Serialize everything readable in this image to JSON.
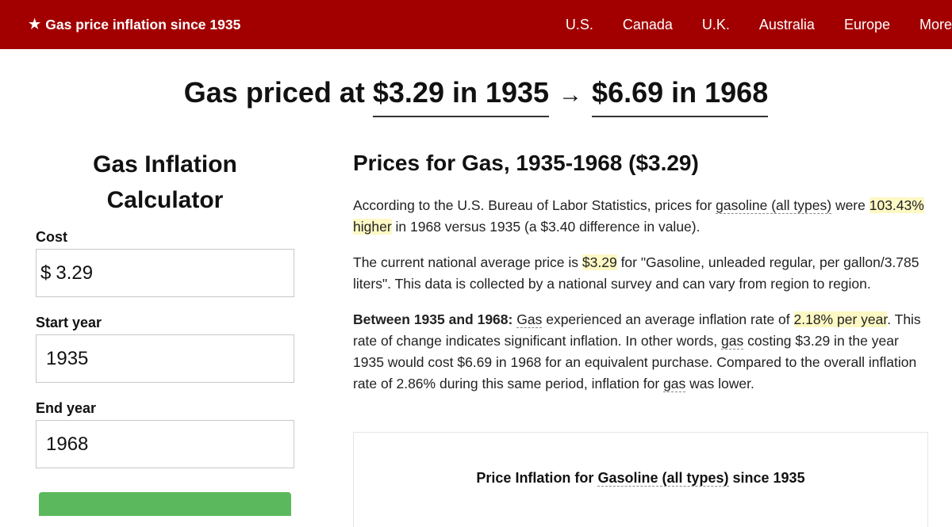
{
  "header": {
    "brand_star": "★",
    "brand": "Gas price inflation since 1935",
    "nav": [
      "U.S.",
      "Canada",
      "U.K.",
      "Australia",
      "Europe",
      "More"
    ]
  },
  "headline": {
    "prefix": "Gas priced at",
    "from": "$3.29 in 1935",
    "arrow": "→",
    "to": "$6.69 in 1968"
  },
  "calculator": {
    "title": "Gas Inflation Calculator",
    "cost_label": "Cost",
    "currency": "$",
    "cost_value": "3.29",
    "start_label": "Start year",
    "start_value": "1935",
    "end_label": "End year",
    "end_value": "1968"
  },
  "content": {
    "heading": "Prices for Gas, 1935-1968 ($3.29)",
    "p1_a": "According to the U.S. Bureau of Labor Statistics, prices for ",
    "p1_link": "gasoline (all types)",
    "p1_b": " were ",
    "p1_mark": "103.43% higher",
    "p1_c": " in 1968 versus 1935 (a $3.40 difference in value).",
    "p2_a": "The current national average price is ",
    "p2_mark": "$3.29",
    "p2_b": " for \"Gasoline, unleaded regular, per gallon/3.785 liters\". This data is collected by a national survey and can vary from region to region.",
    "p3_bold": "Between 1935 and 1968:",
    "p3_link1": "Gas",
    "p3_a": " experienced an average inflation rate of ",
    "p3_mark": "2.18% per year",
    "p3_b": ". This rate of change indicates significant inflation. In other words, ",
    "p3_link2": "gas",
    "p3_c": " costing $3.29 in the year 1935 would cost $6.69 in 1968 for an equivalent purchase. Compared to the overall inflation rate of 2.86% during this same period, inflation for ",
    "p3_link3": "gas",
    "p3_d": " was lower."
  },
  "chart_card": {
    "title_a": "Price Inflation for ",
    "title_link": "Gasoline (all types)",
    "title_b": " since 1935"
  },
  "colors": {
    "header_bg": "#a20000",
    "highlight": "#fdf8c4",
    "button": "#5cb85c"
  }
}
